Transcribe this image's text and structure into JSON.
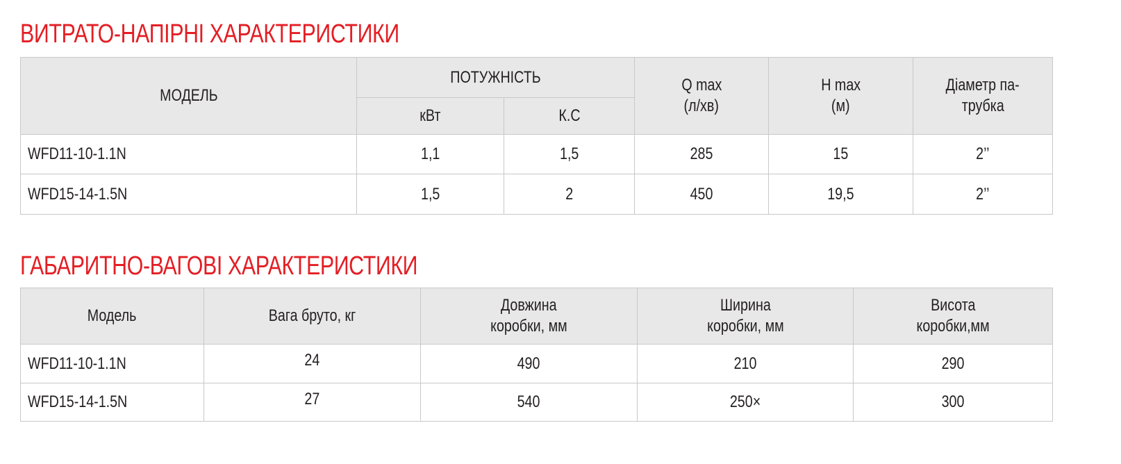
{
  "section1": {
    "title": "ВИТРАТО-НАПІРНІ ХАРАКТЕРИСТИКИ",
    "headers": {
      "model": "МОДЕЛЬ",
      "power": "ПОТУЖНІСТЬ",
      "kw": "кВт",
      "hp": "К.С",
      "qmax": "Q max",
      "qmax_unit": "(л/хв)",
      "hmax": "H max",
      "hmax_unit": "(м)",
      "diameter_1": "Діаметр па-",
      "diameter_2": "трубка"
    },
    "rows": [
      {
        "model": "WFD11-10-1.1N",
        "kw": "1,1",
        "hp": "1,5",
        "qmax": "285",
        "hmax": "15",
        "diameter": "2’’"
      },
      {
        "model": "WFD15-14-1.5N",
        "kw": "1,5",
        "hp": "2",
        "qmax": "450",
        "hmax": "19,5",
        "diameter": "2’’"
      }
    ]
  },
  "section2": {
    "title": "ГАБАРИТНО-ВАГОВІ ХАРАКТЕРИСТИКИ",
    "headers": {
      "model": "Модель",
      "weight": "Вага бруто, кг",
      "length_1": "Довжина",
      "length_2": "коробки, мм",
      "width_1": "Ширина",
      "width_2": "коробки, мм",
      "height_1": "Висота",
      "height_2": "коробки,мм"
    },
    "rows": [
      {
        "model": "WFD11-10-1.1N",
        "weight": "24",
        "length": "490",
        "width": "210",
        "height": "290"
      },
      {
        "model": "WFD15-14-1.5N",
        "weight": "27",
        "length": "540",
        "width": "250×",
        "height": "300"
      }
    ]
  }
}
